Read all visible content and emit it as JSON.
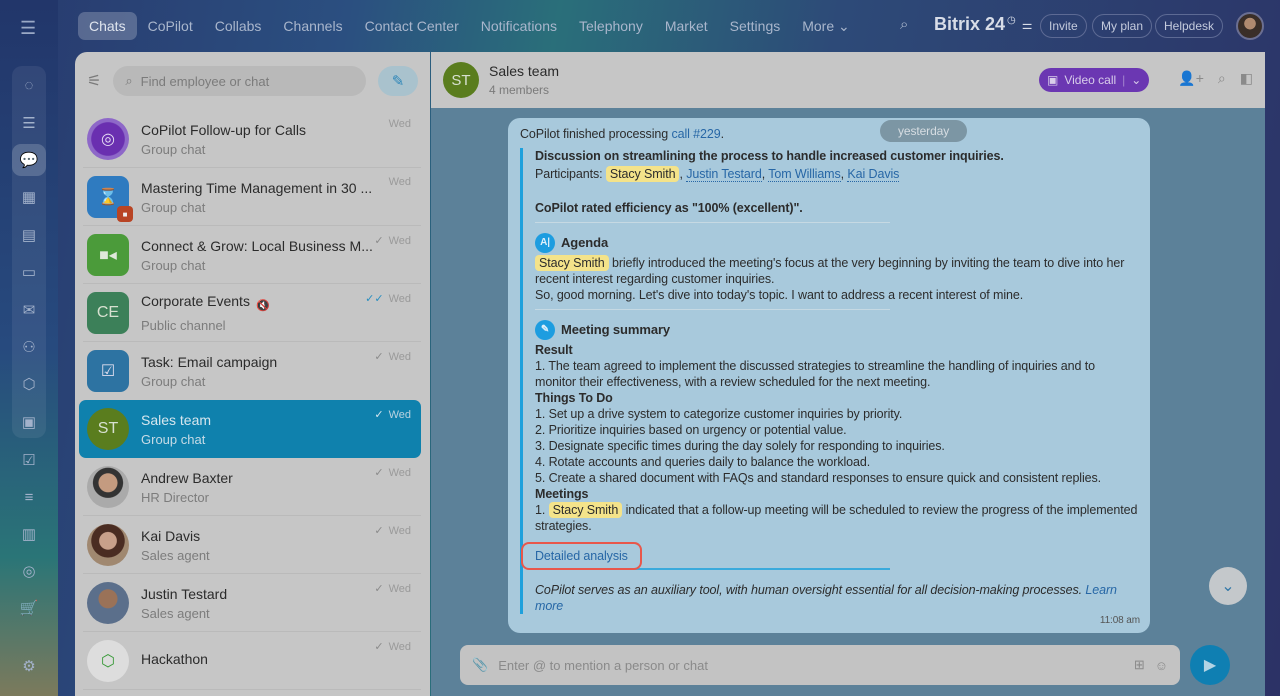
{
  "topnav": {
    "items": [
      "Chats",
      "CoPilot",
      "Collabs",
      "Channels",
      "Contact Center",
      "Notifications",
      "Telephony",
      "Market",
      "Settings",
      "More"
    ],
    "brand": "Bitrix 24",
    "buttons": [
      "Invite",
      "My plan",
      "Helpdesk"
    ]
  },
  "rail": {
    "icons": [
      "copilot-icon",
      "feed-icon",
      "chats-icon",
      "calendar-icon",
      "document-icon",
      "drive-icon",
      "mail-icon",
      "groups-icon",
      "hexagon-icon",
      "presentation-icon",
      "tasks-icon",
      "funnel-icon",
      "store-icon",
      "target-icon",
      "cart-icon",
      "settings-icon"
    ]
  },
  "list": {
    "search_placeholder": "Find employee or chat",
    "items": [
      {
        "name": "CoPilot Follow-up for Calls",
        "sub": "Group chat",
        "date": "Wed",
        "check": ""
      },
      {
        "name": "Mastering Time Management in 30 ...",
        "sub": "Group chat",
        "date": "Wed",
        "check": ""
      },
      {
        "name": "Connect & Grow: Local Business M...",
        "sub": "Group chat",
        "date": "Wed",
        "check": "✓"
      },
      {
        "name": "Corporate Events",
        "sub": "Public channel",
        "date": "Wed",
        "check": "✓✓",
        "initials": "CE"
      },
      {
        "name": "Task: Email campaign",
        "sub": "Group chat",
        "date": "Wed",
        "check": "✓"
      },
      {
        "name": "Sales team",
        "sub": "Group chat",
        "date": "Wed",
        "check": "✓",
        "initials": "ST"
      },
      {
        "name": "Andrew Baxter",
        "sub": "HR Director",
        "date": "Wed",
        "check": "✓"
      },
      {
        "name": "Kai Davis",
        "sub": "Sales agent",
        "date": "Wed",
        "check": "✓"
      },
      {
        "name": "Justin Testard",
        "sub": "Sales agent",
        "date": "Wed",
        "check": "✓"
      },
      {
        "name": "Hackathon",
        "sub": "",
        "date": "Wed",
        "check": "✓"
      }
    ]
  },
  "chat": {
    "title": "Sales team",
    "members": "4 members",
    "initials": "ST",
    "video_call": "Video call",
    "date_badge": "yesterday",
    "msg": {
      "intro": "CoPilot finished processing ",
      "call_link": "call #229",
      "heading": "Discussion on streamlining the process to handle increased customer inquiries.",
      "participants_label": "Participants: ",
      "participants": [
        "Stacy Smith",
        "Justin Testard",
        "Tom Williams",
        "Kai Davis"
      ],
      "rating": "CoPilot rated efficiency as \"100% (excellent)\".",
      "agenda_title": "Agenda",
      "agenda_mention": "Stacy Smith",
      "agenda_text": " briefly introduced the meeting's focus at the very beginning by inviting the team to dive into her recent interest regarding customer inquiries.",
      "agenda_quote": "So, good morning. Let's dive into today's topic. I want to address a recent interest of mine.",
      "summary_title": "Meeting summary",
      "result_label": "Result",
      "result_text": "1. The team agreed to implement the discussed strategies to streamline the handling of inquiries and to monitor their effectiveness, with a review scheduled for the next meeting.",
      "todo_label": "Things To Do",
      "todos": [
        "1. Set up a drive system to categorize customer inquiries by priority.",
        "2. Prioritize inquiries based on urgency or potential value.",
        "3. Designate specific times during the day solely for responding to inquiries.",
        "4. Rotate accounts and queries daily to balance the workload.",
        "5. Create a shared document with FAQs and standard responses to ensure quick and consistent replies."
      ],
      "meetings_label": "Meetings",
      "meetings_prefix": "1. ",
      "meetings_mention": "Stacy Smith",
      "meetings_text": " indicated that a follow-up meeting will be scheduled to review the progress of the implemented strategies.",
      "detailed": "Detailed analysis",
      "disclaimer": "CoPilot serves as an auxiliary tool, with human oversight essential for all decision-making processes. ",
      "learn_more": "Learn more",
      "time": "11:08 am"
    },
    "input_placeholder": "Enter @ to mention a person or chat"
  },
  "colors": {
    "accent": "#0f81ad",
    "video_call": "#6b37b2",
    "highlight": "#e8574b",
    "mention": "#f4e38a"
  }
}
